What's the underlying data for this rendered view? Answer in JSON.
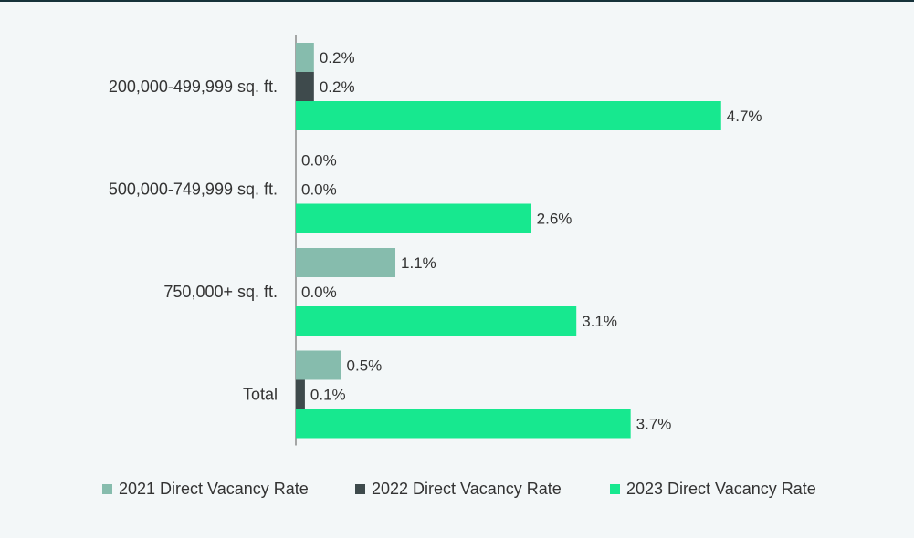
{
  "chart_data": {
    "type": "bar",
    "orientation": "horizontal",
    "categories": [
      "200,000-499,999 sq. ft.",
      "500,000-749,999 sq. ft.",
      "750,000+ sq. ft.",
      "Total"
    ],
    "series": [
      {
        "name": "2021 Direct Vacancy Rate",
        "color": "#86bcad",
        "values": [
          0.2,
          0.0,
          1.1,
          0.5
        ],
        "labels": [
          "0.2%",
          "0.0%",
          "1.1%",
          "0.5%"
        ]
      },
      {
        "name": "2022 Direct Vacancy Rate",
        "color": "#3e4a4c",
        "values": [
          0.2,
          0.0,
          0.0,
          0.1
        ],
        "labels": [
          "0.2%",
          "0.0%",
          "0.0%",
          "0.1%"
        ]
      },
      {
        "name": "2023 Direct Vacancy Rate",
        "color": "#17e88f",
        "values": [
          4.7,
          2.6,
          3.1,
          3.7
        ],
        "labels": [
          "4.7%",
          "2.6%",
          "3.1%",
          "3.7%"
        ]
      }
    ],
    "title": "",
    "xlabel": "",
    "ylabel": "",
    "xlim": [
      0,
      5
    ],
    "grid": false,
    "legend": "bottom"
  }
}
